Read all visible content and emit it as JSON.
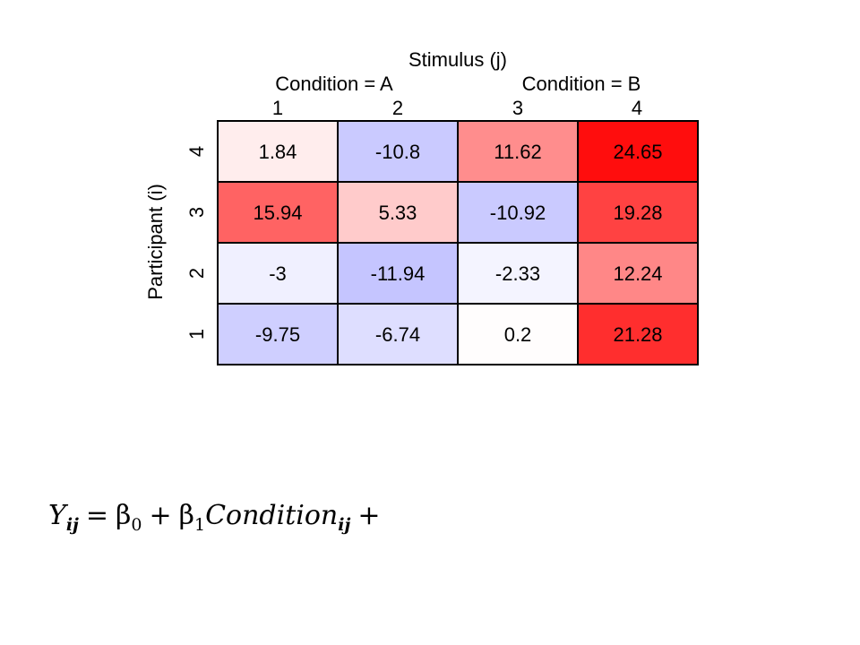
{
  "chart_data": {
    "type": "heatmap",
    "title": "Stimulus (j)",
    "ylabel": "Participant (i)",
    "condition_groups": [
      {
        "label": "Condition = A",
        "columns": [
          "1",
          "2"
        ]
      },
      {
        "label": "Condition = B",
        "columns": [
          "3",
          "4"
        ]
      }
    ],
    "x_categories": [
      "1",
      "2",
      "3",
      "4"
    ],
    "y_categories": [
      "4",
      "3",
      "2",
      "1"
    ],
    "values": [
      [
        1.84,
        -10.8,
        11.62,
        24.65
      ],
      [
        15.94,
        5.33,
        -10.92,
        19.28
      ],
      [
        -3,
        -11.94,
        -2.33,
        12.24
      ],
      [
        -9.75,
        -6.74,
        0.2,
        21.28
      ]
    ],
    "labels": [
      [
        "1.84",
        "-10.8",
        "11.62",
        "24.65"
      ],
      [
        "15.94",
        "5.33",
        "-10.92",
        "19.28"
      ],
      [
        "-3",
        "-11.94",
        "-2.33",
        "12.24"
      ],
      [
        "-9.75",
        "-6.74",
        "0.2",
        "21.28"
      ]
    ],
    "color_scale": {
      "negative": "#8080ff",
      "zero": "#ffffff",
      "positive": "#ff0000",
      "max_abs": 26
    }
  },
  "equation": {
    "Y": "Y",
    "ij_1": "ij",
    "equals": "=",
    "beta0": "β",
    "sub0": "0",
    "plus1": "+",
    "beta1": "β",
    "sub1": "1",
    "condition": "Condition",
    "ij_2": "ij",
    "plus2": "+"
  }
}
